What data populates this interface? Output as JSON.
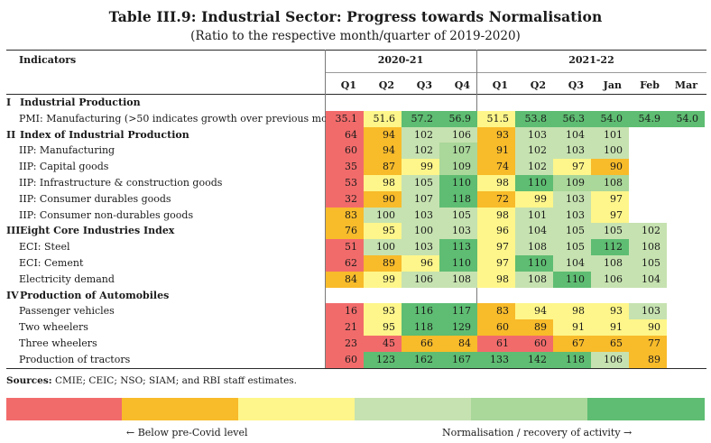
{
  "title": "Table III.9: Industrial Sector: Progress towards Normalisation",
  "subtitle": "(Ratio to the respective month/quarter of 2019-2020)",
  "header": {
    "indicators_label": "Indicators",
    "year_groups": [
      "2020-21",
      "2021-22"
    ],
    "columns": [
      "Q1",
      "Q2",
      "Q3",
      "Q4",
      "Q1",
      "Q2",
      "Q3",
      "Jan",
      "Feb",
      "Mar"
    ]
  },
  "rows": [
    {
      "type": "section",
      "num": "I",
      "label": "Industrial Production",
      "values": []
    },
    {
      "type": "item",
      "label": "PMI: Manufacturing (>50 indicates growth over previous month)",
      "values": [
        "35.1",
        "51.6",
        "57.2",
        "56.9",
        "51.5",
        "53.8",
        "56.3",
        "54.0",
        "54.9",
        "54.0"
      ]
    },
    {
      "type": "section",
      "num": "II",
      "label": "Index of Industrial Production",
      "values": [
        "64",
        "94",
        "102",
        "106",
        "93",
        "103",
        "104",
        "101"
      ]
    },
    {
      "type": "item",
      "label": "IIP: Manufacturing",
      "values": [
        "60",
        "94",
        "102",
        "107",
        "91",
        "102",
        "103",
        "100"
      ]
    },
    {
      "type": "item",
      "label": "IIP: Capital goods",
      "values": [
        "35",
        "87",
        "99",
        "109",
        "74",
        "102",
        "97",
        "90"
      ]
    },
    {
      "type": "item",
      "label": "IIP: Infrastructure & construction goods",
      "values": [
        "53",
        "98",
        "105",
        "110",
        "98",
        "110",
        "109",
        "108"
      ]
    },
    {
      "type": "item",
      "label": "IIP: Consumer durables goods",
      "values": [
        "32",
        "90",
        "107",
        "118",
        "72",
        "99",
        "103",
        "97"
      ]
    },
    {
      "type": "item",
      "label": "IIP: Consumer non-durables goods",
      "values": [
        "83",
        "100",
        "103",
        "105",
        "98",
        "101",
        "103",
        "97"
      ]
    },
    {
      "type": "section",
      "num": "III",
      "label": "Eight Core Industries Index",
      "values": [
        "76",
        "95",
        "100",
        "103",
        "96",
        "104",
        "105",
        "105",
        "102"
      ]
    },
    {
      "type": "item",
      "label": "ECI: Steel",
      "values": [
        "51",
        "100",
        "103",
        "113",
        "97",
        "108",
        "105",
        "112",
        "108"
      ]
    },
    {
      "type": "item",
      "label": "ECI: Cement",
      "values": [
        "62",
        "89",
        "96",
        "110",
        "97",
        "110",
        "104",
        "108",
        "105"
      ]
    },
    {
      "type": "item",
      "label": "Electricity demand",
      "values": [
        "84",
        "99",
        "106",
        "108",
        "98",
        "108",
        "110",
        "106",
        "104"
      ]
    },
    {
      "type": "section",
      "num": "IV",
      "label": "Production of Automobiles",
      "values": []
    },
    {
      "type": "item",
      "label": "Passenger vehicles",
      "values": [
        "16",
        "93",
        "116",
        "117",
        "83",
        "94",
        "98",
        "93",
        "103"
      ]
    },
    {
      "type": "item",
      "label": "Two wheelers",
      "values": [
        "21",
        "95",
        "118",
        "129",
        "60",
        "89",
        "91",
        "91",
        "90"
      ]
    },
    {
      "type": "item",
      "label": "Three wheelers",
      "values": [
        "23",
        "45",
        "66",
        "84",
        "61",
        "60",
        "67",
        "65",
        "77"
      ]
    },
    {
      "type": "item",
      "label": "Production of tractors",
      "values": [
        "60",
        "123",
        "162",
        "167",
        "133",
        "142",
        "118",
        "106",
        "89"
      ]
    }
  ],
  "sources_label": "Sources:",
  "sources_text": " CMIE; CEIC; NSO; SIAM; and RBI staff estimates.",
  "legend": {
    "left_label": "← Below pre-Covid level",
    "right_label": "Normalisation / recovery of activity →",
    "colors": [
      "#f26b6b",
      "#f8bb2a",
      "#fef68a",
      "#c6e2b0",
      "#aad79a",
      "#5ebd72"
    ]
  },
  "cell_colors": {
    "red": "#f26b6b",
    "orange": "#f8bb2a",
    "yellow": "#fef68a",
    "lightgreen": "#c6e2b0",
    "midgreen": "#aad79a",
    "green": "#5ebd72"
  },
  "cell_color_map": [
    [],
    [
      "red",
      "yellow",
      "green",
      "green",
      "yellow",
      "green",
      "green",
      "green",
      "green",
      "green"
    ],
    [
      "red",
      "orange",
      "lightgreen",
      "lightgreen",
      "orange",
      "lightgreen",
      "lightgreen",
      "lightgreen"
    ],
    [
      "red",
      "orange",
      "lightgreen",
      "midgreen",
      "orange",
      "lightgreen",
      "lightgreen",
      "lightgreen"
    ],
    [
      "red",
      "orange",
      "yellow",
      "midgreen",
      "orange",
      "lightgreen",
      "yellow",
      "orange"
    ],
    [
      "red",
      "yellow",
      "lightgreen",
      "green",
      "yellow",
      "green",
      "midgreen",
      "midgreen"
    ],
    [
      "red",
      "orange",
      "lightgreen",
      "green",
      "orange",
      "yellow",
      "lightgreen",
      "yellow"
    ],
    [
      "orange",
      "lightgreen",
      "lightgreen",
      "lightgreen",
      "yellow",
      "lightgreen",
      "lightgreen",
      "yellow"
    ],
    [
      "orange",
      "yellow",
      "lightgreen",
      "lightgreen",
      "yellow",
      "lightgreen",
      "lightgreen",
      "lightgreen",
      "lightgreen"
    ],
    [
      "red",
      "lightgreen",
      "lightgreen",
      "green",
      "yellow",
      "lightgreen",
      "lightgreen",
      "green",
      "lightgreen"
    ],
    [
      "red",
      "orange",
      "yellow",
      "green",
      "yellow",
      "green",
      "lightgreen",
      "lightgreen",
      "lightgreen"
    ],
    [
      "orange",
      "yellow",
      "lightgreen",
      "lightgreen",
      "yellow",
      "lightgreen",
      "green",
      "lightgreen",
      "lightgreen"
    ],
    [],
    [
      "red",
      "yellow",
      "green",
      "green",
      "orange",
      "yellow",
      "yellow",
      "yellow",
      "lightgreen"
    ],
    [
      "red",
      "yellow",
      "green",
      "green",
      "orange",
      "orange",
      "yellow",
      "yellow",
      "yellow"
    ],
    [
      "red",
      "red",
      "orange",
      "orange",
      "red",
      "red",
      "orange",
      "orange",
      "orange"
    ],
    [
      "red",
      "green",
      "green",
      "green",
      "green",
      "green",
      "green",
      "lightgreen",
      "orange"
    ]
  ]
}
